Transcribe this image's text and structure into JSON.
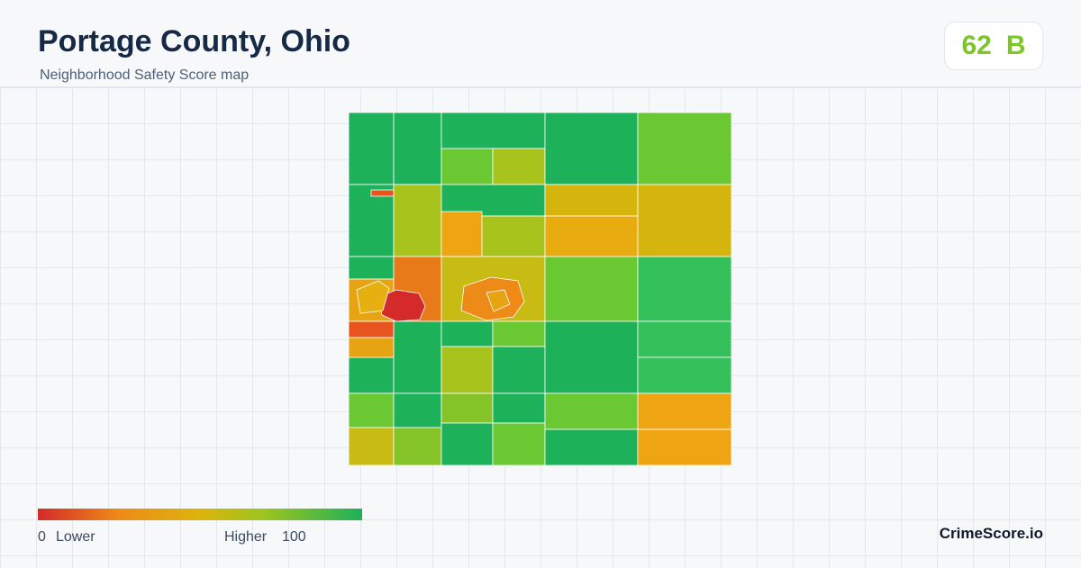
{
  "header": {
    "title": "Portage County, Ohio",
    "subtitle": "Neighborhood Safety Score map"
  },
  "score": {
    "value": 62,
    "grade": "B"
  },
  "legend": {
    "min": 0,
    "min_label": "Lower",
    "max_label": "Higher",
    "max": 100
  },
  "brand": "CrimeScore.io"
}
